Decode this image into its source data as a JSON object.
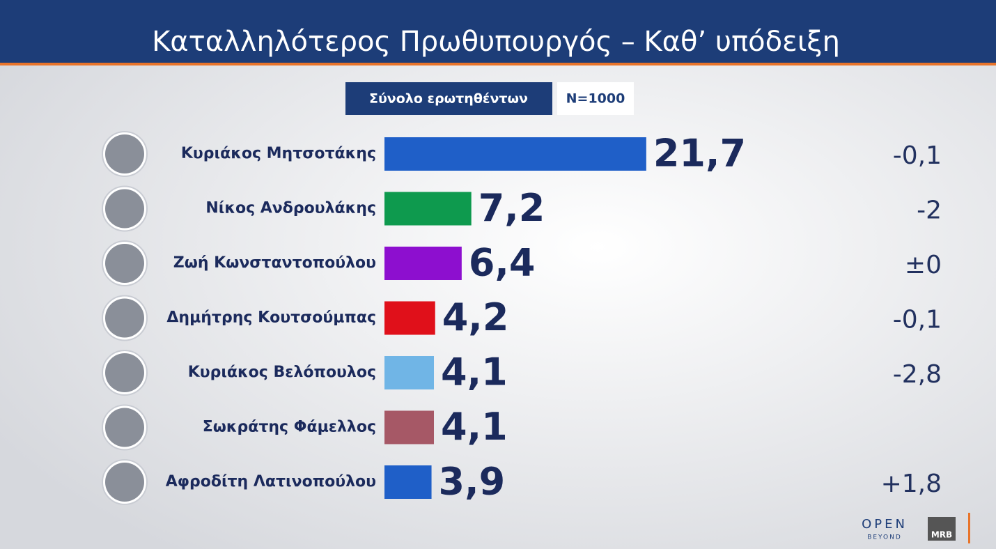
{
  "chart_data": {
    "type": "bar",
    "title": "Καταλληλότερος  Πρωθυπουργός – Καθ’ υπόδειξη",
    "subtitle": "Σύνολο ερωτηθέντων",
    "sample": "N=1000",
    "categories": [
      "Κυριάκος Μητσοτάκης",
      "Νίκος Ανδρουλάκης",
      "Ζωή Κωνσταντοπούλου",
      "Δημήτρης Κουτσούμπας",
      "Κυριάκος Βελόπουλος",
      "Σωκράτης Φάμελλος",
      "Αφροδίτη Λατινοπούλου"
    ],
    "values": [
      21.7,
      7.2,
      6.4,
      4.2,
      4.1,
      4.1,
      3.9
    ],
    "value_labels": [
      "21,7",
      "7,2",
      "6,4",
      "4,2",
      "4,1",
      "4,1",
      "3,9"
    ],
    "colors": [
      "#1f5fc8",
      "#0e9a4e",
      "#8d0fcf",
      "#e0101a",
      "#70b5e6",
      "#a65866",
      "#1f5fc8"
    ],
    "change_labels": [
      "-0,1",
      "-2",
      "±0",
      "-0,1",
      "-2,8",
      null,
      "+1,8"
    ],
    "xlim": [
      0,
      25
    ],
    "logos": [
      "OPEN",
      "BEYOND",
      "MRB"
    ]
  }
}
